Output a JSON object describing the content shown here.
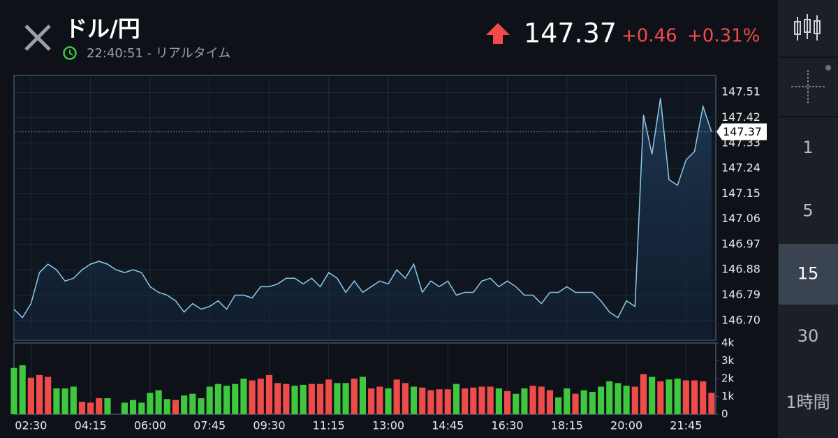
{
  "header": {
    "title": "ドル/円",
    "time": "22:40:51 - リアルタイム",
    "price": "147.37",
    "change": "+0.46",
    "change_pct": "+0.31%"
  },
  "sidebar": {
    "intervals": [
      "1",
      "5",
      "15",
      "30",
      "1時間"
    ],
    "selected": 2
  },
  "chart_data": [
    {
      "type": "line",
      "color": "#8ecbe8",
      "xlim": [
        0,
        82.5
      ],
      "ylim": [
        146.63,
        147.57
      ],
      "yticks": [
        {
          "value": 146.7,
          "label": "146.70"
        },
        146.79,
        146.88,
        146.97,
        147.06,
        147.15,
        147.24,
        147.33,
        147.42,
        147.51
      ],
      "current_value": 147.37,
      "grid": true,
      "values": [
        146.74,
        146.71,
        146.76,
        146.87,
        146.9,
        146.88,
        146.84,
        146.85,
        146.88,
        146.9,
        146.91,
        146.9,
        146.88,
        146.87,
        146.88,
        146.87,
        146.82,
        146.8,
        146.79,
        146.77,
        146.73,
        146.76,
        146.74,
        146.75,
        146.77,
        146.74,
        146.79,
        146.79,
        146.78,
        146.82,
        146.82,
        146.83,
        146.85,
        146.85,
        146.83,
        146.85,
        146.82,
        146.87,
        146.85,
        146.8,
        146.84,
        146.8,
        146.82,
        146.84,
        146.83,
        146.88,
        146.85,
        146.9,
        146.8,
        146.84,
        146.82,
        146.84,
        146.79,
        146.8,
        146.8,
        146.84,
        146.85,
        146.82,
        146.84,
        146.82,
        146.79,
        146.79,
        146.76,
        146.8,
        146.8,
        146.82,
        146.8,
        146.8,
        146.8,
        146.77,
        146.73,
        146.71,
        146.77,
        146.75,
        147.43,
        147.29,
        147.49,
        147.2,
        147.18,
        147.27,
        147.3,
        147.46,
        147.37
      ]
    },
    {
      "type": "bar",
      "xlim": [
        0,
        82.5
      ],
      "ylim": [
        0,
        4000
      ],
      "yticks": [
        {
          "value": 0,
          "label": "0"
        },
        {
          "value": 1000,
          "label": "1k"
        },
        {
          "value": 2000,
          "label": "2k"
        },
        {
          "value": 3000,
          "label": "3k"
        },
        {
          "value": 4000,
          "label": "4k"
        }
      ],
      "xticks": [
        {
          "value": 2,
          "label": "02:30"
        },
        {
          "value": 9,
          "label": "04:15"
        },
        {
          "value": 16,
          "label": "06:00"
        },
        {
          "value": 23,
          "label": "07:45"
        },
        {
          "value": 30,
          "label": "09:30"
        },
        {
          "value": 37,
          "label": "11:15"
        },
        {
          "value": 44,
          "label": "13:00"
        },
        {
          "value": 51,
          "label": "14:45"
        },
        {
          "value": 58,
          "label": "16:30"
        },
        {
          "value": 65,
          "label": "18:15"
        },
        {
          "value": 72,
          "label": "20:00"
        },
        {
          "value": 79,
          "label": "21:45"
        }
      ],
      "values": [
        2600,
        2750,
        2050,
        2200,
        2100,
        1450,
        1450,
        1550,
        700,
        650,
        900,
        900,
        0,
        650,
        800,
        650,
        1200,
        1350,
        850,
        800,
        1050,
        1150,
        900,
        1550,
        1700,
        1600,
        1700,
        2000,
        1900,
        2000,
        2200,
        1750,
        1700,
        1600,
        1650,
        1700,
        1700,
        1950,
        1750,
        1750,
        2000,
        2100,
        1450,
        1550,
        1450,
        1950,
        1750,
        1550,
        1500,
        1350,
        1400,
        1400,
        1700,
        1450,
        1500,
        1550,
        1550,
        1450,
        1300,
        1150,
        1450,
        1600,
        1550,
        1350,
        950,
        1450,
        1150,
        1350,
        1250,
        1550,
        1850,
        1750,
        1600,
        1550,
        2250,
        2100,
        1850,
        1950,
        2000,
        1900,
        1900,
        1850,
        1200
      ],
      "colors": [
        "#3fc83f",
        "#3fc83f",
        "#f04b4b",
        "#f04b4b",
        "#f04b4b",
        "#3fc83f",
        "#3fc83f",
        "#3fc83f",
        "#f04b4b",
        "#f04b4b",
        "#f04b4b",
        "#3fc83f",
        "#3fc83f",
        "#3fc83f",
        "#3fc83f",
        "#3fc83f",
        "#3fc83f",
        "#3fc83f",
        "#3fc83f",
        "#f04b4b",
        "#3fc83f",
        "#3fc83f",
        "#3fc83f",
        "#3fc83f",
        "#3fc83f",
        "#3fc83f",
        "#3fc83f",
        "#3fc83f",
        "#f04b4b",
        "#f04b4b",
        "#f04b4b",
        "#f04b4b",
        "#f04b4b",
        "#3fc83f",
        "#3fc83f",
        "#f04b4b",
        "#f04b4b",
        "#f04b4b",
        "#3fc83f",
        "#3fc83f",
        "#f04b4b",
        "#3fc83f",
        "#f04b4b",
        "#f04b4b",
        "#3fc83f",
        "#f04b4b",
        "#f04b4b",
        "#3fc83f",
        "#f04b4b",
        "#f04b4b",
        "#f04b4b",
        "#f04b4b",
        "#3fc83f",
        "#f04b4b",
        "#f04b4b",
        "#f04b4b",
        "#f04b4b",
        "#3fc83f",
        "#f04b4b",
        "#3fc83f",
        "#3fc83f",
        "#f04b4b",
        "#f04b4b",
        "#f04b4b",
        "#3fc83f",
        "#3fc83f",
        "#f04b4b",
        "#3fc83f",
        "#3fc83f",
        "#3fc83f",
        "#3fc83f",
        "#3fc83f",
        "#3fc83f",
        "#f04b4b",
        "#f04b4b",
        "#3fc83f",
        "#f04b4b",
        "#3fc83f",
        "#3fc83f",
        "#f04b4b",
        "#f04b4b",
        "#f04b4b",
        "#f04b4b"
      ]
    }
  ]
}
